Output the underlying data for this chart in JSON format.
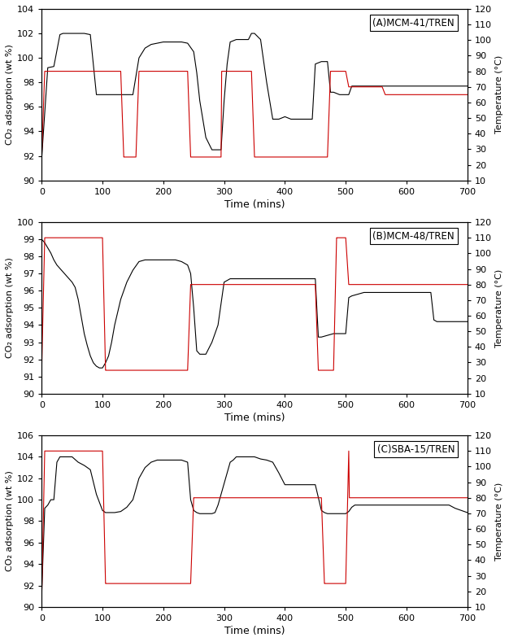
{
  "panels": [
    {
      "title": "(A)MCM-41/TREN",
      "ylabel_left": "CO₂ adsorption (wt %)",
      "ylabel_right": "Temperature (°C)",
      "xlabel": "Time (mins)",
      "xlim": [
        0,
        700
      ],
      "ylim_left": [
        90,
        104
      ],
      "ylim_right": [
        10,
        120
      ],
      "yticks_left": [
        90,
        92,
        94,
        96,
        98,
        100,
        102,
        104
      ],
      "yticks_right": [
        10,
        20,
        30,
        40,
        50,
        60,
        70,
        80,
        90,
        100,
        110,
        120
      ],
      "xticks": [
        0,
        100,
        200,
        300,
        400,
        500,
        600,
        700
      ],
      "black_x": [
        0,
        10,
        20,
        30,
        35,
        40,
        50,
        60,
        70,
        80,
        90,
        100,
        110,
        120,
        130,
        140,
        150,
        155,
        160,
        170,
        180,
        190,
        200,
        210,
        220,
        230,
        240,
        250,
        255,
        260,
        270,
        280,
        285,
        290,
        295,
        300,
        305,
        310,
        320,
        330,
        340,
        345,
        350,
        360,
        370,
        380,
        390,
        400,
        410,
        420,
        430,
        440,
        445,
        450,
        460,
        470,
        475,
        480,
        490,
        500,
        505,
        510,
        515,
        520,
        530,
        540,
        550,
        560,
        570,
        580,
        590,
        600,
        610,
        620,
        630,
        640,
        645,
        650,
        660,
        670,
        680,
        690,
        700
      ],
      "black_y": [
        91.8,
        99.2,
        99.3,
        101.9,
        102.0,
        102.0,
        102.0,
        102.0,
        102.0,
        101.9,
        97.0,
        97.0,
        97.0,
        97.0,
        97.0,
        97.0,
        97.0,
        98.5,
        100.0,
        100.8,
        101.1,
        101.2,
        101.3,
        101.3,
        101.3,
        101.3,
        101.2,
        100.5,
        98.8,
        96.5,
        93.5,
        92.5,
        92.5,
        92.5,
        92.5,
        96.5,
        99.5,
        101.3,
        101.5,
        101.5,
        101.5,
        102.0,
        102.0,
        101.5,
        98.0,
        95.0,
        95.0,
        95.2,
        95.0,
        95.0,
        95.0,
        95.0,
        95.0,
        99.5,
        99.7,
        99.7,
        97.2,
        97.2,
        97.0,
        97.0,
        97.0,
        97.7,
        97.7,
        97.7,
        97.7,
        97.7,
        97.7,
        97.7,
        97.7,
        97.7,
        97.7,
        97.7,
        97.7,
        97.7,
        97.7,
        97.7,
        97.7,
        97.7,
        97.7,
        97.7,
        97.7,
        97.7,
        97.7
      ],
      "red_x": [
        0,
        5,
        10,
        15,
        25,
        30,
        35,
        130,
        135,
        136,
        155,
        160,
        240,
        245,
        246,
        290,
        295,
        296,
        345,
        350,
        440,
        445,
        446,
        470,
        475,
        476,
        500,
        505,
        560,
        565,
        700
      ],
      "red_y": [
        25,
        80,
        80,
        80,
        80,
        80,
        80,
        80,
        25,
        25,
        25,
        80,
        80,
        25,
        25,
        25,
        25,
        80,
        80,
        25,
        25,
        25,
        25,
        25,
        80,
        80,
        80,
        70,
        70,
        65,
        65
      ]
    },
    {
      "title": "(B)MCM-48/TREN",
      "ylabel_left": "CO₂ adsorption (wt %)",
      "ylabel_right": "Temperature (°C)",
      "xlabel": "Time (mins)",
      "xlim": [
        0,
        700
      ],
      "ylim_left": [
        90,
        100
      ],
      "ylim_right": [
        10,
        120
      ],
      "yticks_left": [
        90,
        91,
        92,
        93,
        94,
        95,
        96,
        97,
        98,
        99,
        100
      ],
      "yticks_right": [
        10,
        20,
        30,
        40,
        50,
        60,
        70,
        80,
        90,
        100,
        110,
        120
      ],
      "xticks": [
        0,
        100,
        200,
        300,
        400,
        500,
        600,
        700
      ],
      "black_x": [
        0,
        5,
        10,
        15,
        20,
        25,
        30,
        35,
        40,
        45,
        50,
        55,
        60,
        65,
        70,
        75,
        80,
        85,
        90,
        95,
        100,
        105,
        110,
        115,
        120,
        130,
        140,
        150,
        160,
        170,
        180,
        190,
        200,
        210,
        220,
        230,
        240,
        245,
        250,
        255,
        260,
        270,
        280,
        290,
        300,
        310,
        315,
        320,
        330,
        340,
        350,
        360,
        370,
        380,
        390,
        400,
        410,
        420,
        430,
        440,
        450,
        455,
        460,
        470,
        480,
        490,
        500,
        505,
        510,
        520,
        530,
        540,
        550,
        560,
        570,
        580,
        590,
        600,
        610,
        620,
        630,
        640,
        645,
        650,
        660,
        670,
        680,
        690,
        700
      ],
      "black_y": [
        99.0,
        98.8,
        98.5,
        98.2,
        97.8,
        97.5,
        97.3,
        97.1,
        96.9,
        96.7,
        96.5,
        96.2,
        95.5,
        94.5,
        93.5,
        92.8,
        92.2,
        91.8,
        91.6,
        91.5,
        91.5,
        91.8,
        92.2,
        93.0,
        94.0,
        95.5,
        96.5,
        97.2,
        97.7,
        97.8,
        97.8,
        97.8,
        97.8,
        97.8,
        97.8,
        97.7,
        97.5,
        97.0,
        95.0,
        92.5,
        92.3,
        92.3,
        93.0,
        94.0,
        96.5,
        96.7,
        96.7,
        96.7,
        96.7,
        96.7,
        96.7,
        96.7,
        96.7,
        96.7,
        96.7,
        96.7,
        96.7,
        96.7,
        96.7,
        96.7,
        96.7,
        93.3,
        93.3,
        93.4,
        93.5,
        93.5,
        93.5,
        95.6,
        95.7,
        95.8,
        95.9,
        95.9,
        95.9,
        95.9,
        95.9,
        95.9,
        95.9,
        95.9,
        95.9,
        95.9,
        95.9,
        95.9,
        94.3,
        94.2,
        94.2,
        94.2,
        94.2,
        94.2,
        94.2
      ],
      "red_x": [
        0,
        5,
        10,
        100,
        105,
        106,
        240,
        245,
        246,
        450,
        455,
        456,
        480,
        485,
        486,
        500,
        505,
        700
      ],
      "red_y": [
        25,
        110,
        110,
        110,
        25,
        25,
        25,
        80,
        80,
        80,
        25,
        25,
        25,
        110,
        110,
        110,
        80,
        80
      ]
    },
    {
      "title": "(C)SBA-15/TREN",
      "ylabel_left": "CO₂ adsorption (wt %)",
      "ylabel_right": "Temperature (°C)",
      "xlabel": "Time (mins)",
      "xlim": [
        0,
        700
      ],
      "ylim_left": [
        90,
        106
      ],
      "ylim_right": [
        10,
        120
      ],
      "yticks_left": [
        90,
        92,
        94,
        96,
        98,
        100,
        102,
        104,
        106
      ],
      "yticks_right": [
        10,
        20,
        30,
        40,
        50,
        60,
        70,
        80,
        90,
        100,
        110,
        120
      ],
      "xticks": [
        0,
        100,
        200,
        300,
        400,
        500,
        600,
        700
      ],
      "black_x": [
        0,
        5,
        10,
        15,
        20,
        25,
        30,
        35,
        40,
        50,
        60,
        70,
        80,
        90,
        100,
        105,
        110,
        115,
        120,
        130,
        140,
        150,
        160,
        170,
        180,
        190,
        200,
        210,
        220,
        230,
        240,
        245,
        250,
        255,
        260,
        270,
        280,
        285,
        290,
        300,
        310,
        315,
        320,
        325,
        330,
        340,
        350,
        360,
        370,
        380,
        390,
        400,
        410,
        420,
        430,
        440,
        450,
        460,
        465,
        470,
        475,
        480,
        490,
        500,
        505,
        510,
        515,
        520,
        530,
        540,
        550,
        560,
        570,
        580,
        590,
        600,
        610,
        620,
        630,
        640,
        650,
        660,
        670,
        680,
        690,
        700
      ],
      "black_y": [
        91.2,
        99.2,
        99.5,
        100.0,
        100.0,
        103.5,
        104.0,
        104.0,
        104.0,
        104.0,
        103.5,
        103.2,
        102.8,
        100.5,
        99.0,
        98.8,
        98.8,
        98.8,
        98.8,
        98.9,
        99.3,
        100.0,
        102.0,
        103.0,
        103.5,
        103.7,
        103.7,
        103.7,
        103.7,
        103.7,
        103.5,
        100.0,
        99.0,
        98.8,
        98.7,
        98.7,
        98.7,
        98.8,
        99.5,
        101.5,
        103.5,
        103.7,
        104.0,
        104.0,
        104.0,
        104.0,
        104.0,
        103.8,
        103.7,
        103.5,
        102.5,
        101.4,
        101.4,
        101.4,
        101.4,
        101.4,
        101.4,
        99.0,
        98.8,
        98.7,
        98.7,
        98.7,
        98.7,
        98.7,
        98.9,
        99.3,
        99.5,
        99.5,
        99.5,
        99.5,
        99.5,
        99.5,
        99.5,
        99.5,
        99.5,
        99.5,
        99.5,
        99.5,
        99.5,
        99.5,
        99.5,
        99.5,
        99.5,
        99.2,
        99.0,
        98.8
      ],
      "red_x": [
        0,
        5,
        10,
        100,
        105,
        106,
        245,
        250,
        251,
        460,
        465,
        466,
        500,
        505,
        506,
        700
      ],
      "red_y": [
        15,
        110,
        110,
        110,
        25,
        25,
        25,
        80,
        80,
        80,
        25,
        25,
        25,
        110,
        80,
        80
      ]
    }
  ],
  "line_color_black": "#000000",
  "line_color_red": "#cc0000",
  "line_width": 0.8,
  "fig_width": 6.26,
  "fig_height": 7.89,
  "dpi": 100,
  "background_color": "#ffffff"
}
